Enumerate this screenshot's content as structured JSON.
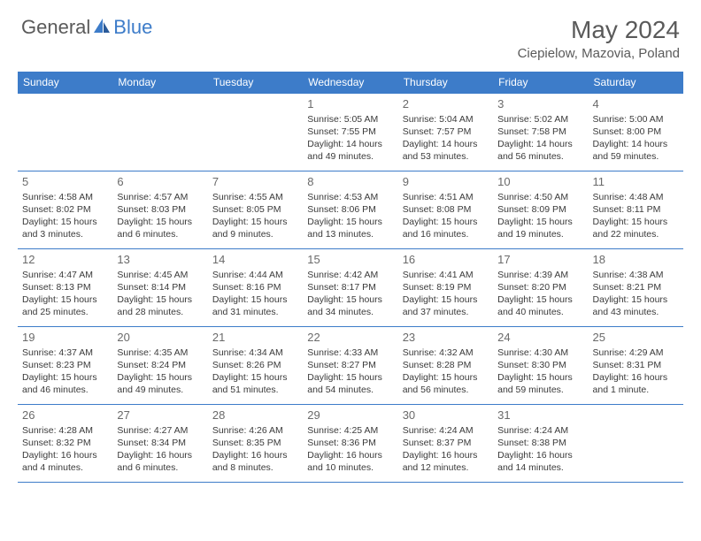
{
  "logo": {
    "general": "General",
    "blue": "Blue"
  },
  "title": "May 2024",
  "location": "Ciepielow, Mazovia, Poland",
  "weekdays": [
    "Sunday",
    "Monday",
    "Tuesday",
    "Wednesday",
    "Thursday",
    "Friday",
    "Saturday"
  ],
  "colors": {
    "header_bg": "#3d7cc9",
    "header_text": "#ffffff",
    "text": "#3a3a3a",
    "title_text": "#5a5a5a",
    "border": "#3d7cc9"
  },
  "typography": {
    "title_fontsize": 28,
    "location_fontsize": 15,
    "weekday_fontsize": 12,
    "daynum_fontsize": 13,
    "body_fontsize": 10.5
  },
  "weeks": [
    [
      null,
      null,
      null,
      {
        "n": "1",
        "sr": "Sunrise: 5:05 AM",
        "ss": "Sunset: 7:55 PM",
        "dl": "Daylight: 14 hours and 49 minutes."
      },
      {
        "n": "2",
        "sr": "Sunrise: 5:04 AM",
        "ss": "Sunset: 7:57 PM",
        "dl": "Daylight: 14 hours and 53 minutes."
      },
      {
        "n": "3",
        "sr": "Sunrise: 5:02 AM",
        "ss": "Sunset: 7:58 PM",
        "dl": "Daylight: 14 hours and 56 minutes."
      },
      {
        "n": "4",
        "sr": "Sunrise: 5:00 AM",
        "ss": "Sunset: 8:00 PM",
        "dl": "Daylight: 14 hours and 59 minutes."
      }
    ],
    [
      {
        "n": "5",
        "sr": "Sunrise: 4:58 AM",
        "ss": "Sunset: 8:02 PM",
        "dl": "Daylight: 15 hours and 3 minutes."
      },
      {
        "n": "6",
        "sr": "Sunrise: 4:57 AM",
        "ss": "Sunset: 8:03 PM",
        "dl": "Daylight: 15 hours and 6 minutes."
      },
      {
        "n": "7",
        "sr": "Sunrise: 4:55 AM",
        "ss": "Sunset: 8:05 PM",
        "dl": "Daylight: 15 hours and 9 minutes."
      },
      {
        "n": "8",
        "sr": "Sunrise: 4:53 AM",
        "ss": "Sunset: 8:06 PM",
        "dl": "Daylight: 15 hours and 13 minutes."
      },
      {
        "n": "9",
        "sr": "Sunrise: 4:51 AM",
        "ss": "Sunset: 8:08 PM",
        "dl": "Daylight: 15 hours and 16 minutes."
      },
      {
        "n": "10",
        "sr": "Sunrise: 4:50 AM",
        "ss": "Sunset: 8:09 PM",
        "dl": "Daylight: 15 hours and 19 minutes."
      },
      {
        "n": "11",
        "sr": "Sunrise: 4:48 AM",
        "ss": "Sunset: 8:11 PM",
        "dl": "Daylight: 15 hours and 22 minutes."
      }
    ],
    [
      {
        "n": "12",
        "sr": "Sunrise: 4:47 AM",
        "ss": "Sunset: 8:13 PM",
        "dl": "Daylight: 15 hours and 25 minutes."
      },
      {
        "n": "13",
        "sr": "Sunrise: 4:45 AM",
        "ss": "Sunset: 8:14 PM",
        "dl": "Daylight: 15 hours and 28 minutes."
      },
      {
        "n": "14",
        "sr": "Sunrise: 4:44 AM",
        "ss": "Sunset: 8:16 PM",
        "dl": "Daylight: 15 hours and 31 minutes."
      },
      {
        "n": "15",
        "sr": "Sunrise: 4:42 AM",
        "ss": "Sunset: 8:17 PM",
        "dl": "Daylight: 15 hours and 34 minutes."
      },
      {
        "n": "16",
        "sr": "Sunrise: 4:41 AM",
        "ss": "Sunset: 8:19 PM",
        "dl": "Daylight: 15 hours and 37 minutes."
      },
      {
        "n": "17",
        "sr": "Sunrise: 4:39 AM",
        "ss": "Sunset: 8:20 PM",
        "dl": "Daylight: 15 hours and 40 minutes."
      },
      {
        "n": "18",
        "sr": "Sunrise: 4:38 AM",
        "ss": "Sunset: 8:21 PM",
        "dl": "Daylight: 15 hours and 43 minutes."
      }
    ],
    [
      {
        "n": "19",
        "sr": "Sunrise: 4:37 AM",
        "ss": "Sunset: 8:23 PM",
        "dl": "Daylight: 15 hours and 46 minutes."
      },
      {
        "n": "20",
        "sr": "Sunrise: 4:35 AM",
        "ss": "Sunset: 8:24 PM",
        "dl": "Daylight: 15 hours and 49 minutes."
      },
      {
        "n": "21",
        "sr": "Sunrise: 4:34 AM",
        "ss": "Sunset: 8:26 PM",
        "dl": "Daylight: 15 hours and 51 minutes."
      },
      {
        "n": "22",
        "sr": "Sunrise: 4:33 AM",
        "ss": "Sunset: 8:27 PM",
        "dl": "Daylight: 15 hours and 54 minutes."
      },
      {
        "n": "23",
        "sr": "Sunrise: 4:32 AM",
        "ss": "Sunset: 8:28 PM",
        "dl": "Daylight: 15 hours and 56 minutes."
      },
      {
        "n": "24",
        "sr": "Sunrise: 4:30 AM",
        "ss": "Sunset: 8:30 PM",
        "dl": "Daylight: 15 hours and 59 minutes."
      },
      {
        "n": "25",
        "sr": "Sunrise: 4:29 AM",
        "ss": "Sunset: 8:31 PM",
        "dl": "Daylight: 16 hours and 1 minute."
      }
    ],
    [
      {
        "n": "26",
        "sr": "Sunrise: 4:28 AM",
        "ss": "Sunset: 8:32 PM",
        "dl": "Daylight: 16 hours and 4 minutes."
      },
      {
        "n": "27",
        "sr": "Sunrise: 4:27 AM",
        "ss": "Sunset: 8:34 PM",
        "dl": "Daylight: 16 hours and 6 minutes."
      },
      {
        "n": "28",
        "sr": "Sunrise: 4:26 AM",
        "ss": "Sunset: 8:35 PM",
        "dl": "Daylight: 16 hours and 8 minutes."
      },
      {
        "n": "29",
        "sr": "Sunrise: 4:25 AM",
        "ss": "Sunset: 8:36 PM",
        "dl": "Daylight: 16 hours and 10 minutes."
      },
      {
        "n": "30",
        "sr": "Sunrise: 4:24 AM",
        "ss": "Sunset: 8:37 PM",
        "dl": "Daylight: 16 hours and 12 minutes."
      },
      {
        "n": "31",
        "sr": "Sunrise: 4:24 AM",
        "ss": "Sunset: 8:38 PM",
        "dl": "Daylight: 16 hours and 14 minutes."
      },
      null
    ]
  ]
}
